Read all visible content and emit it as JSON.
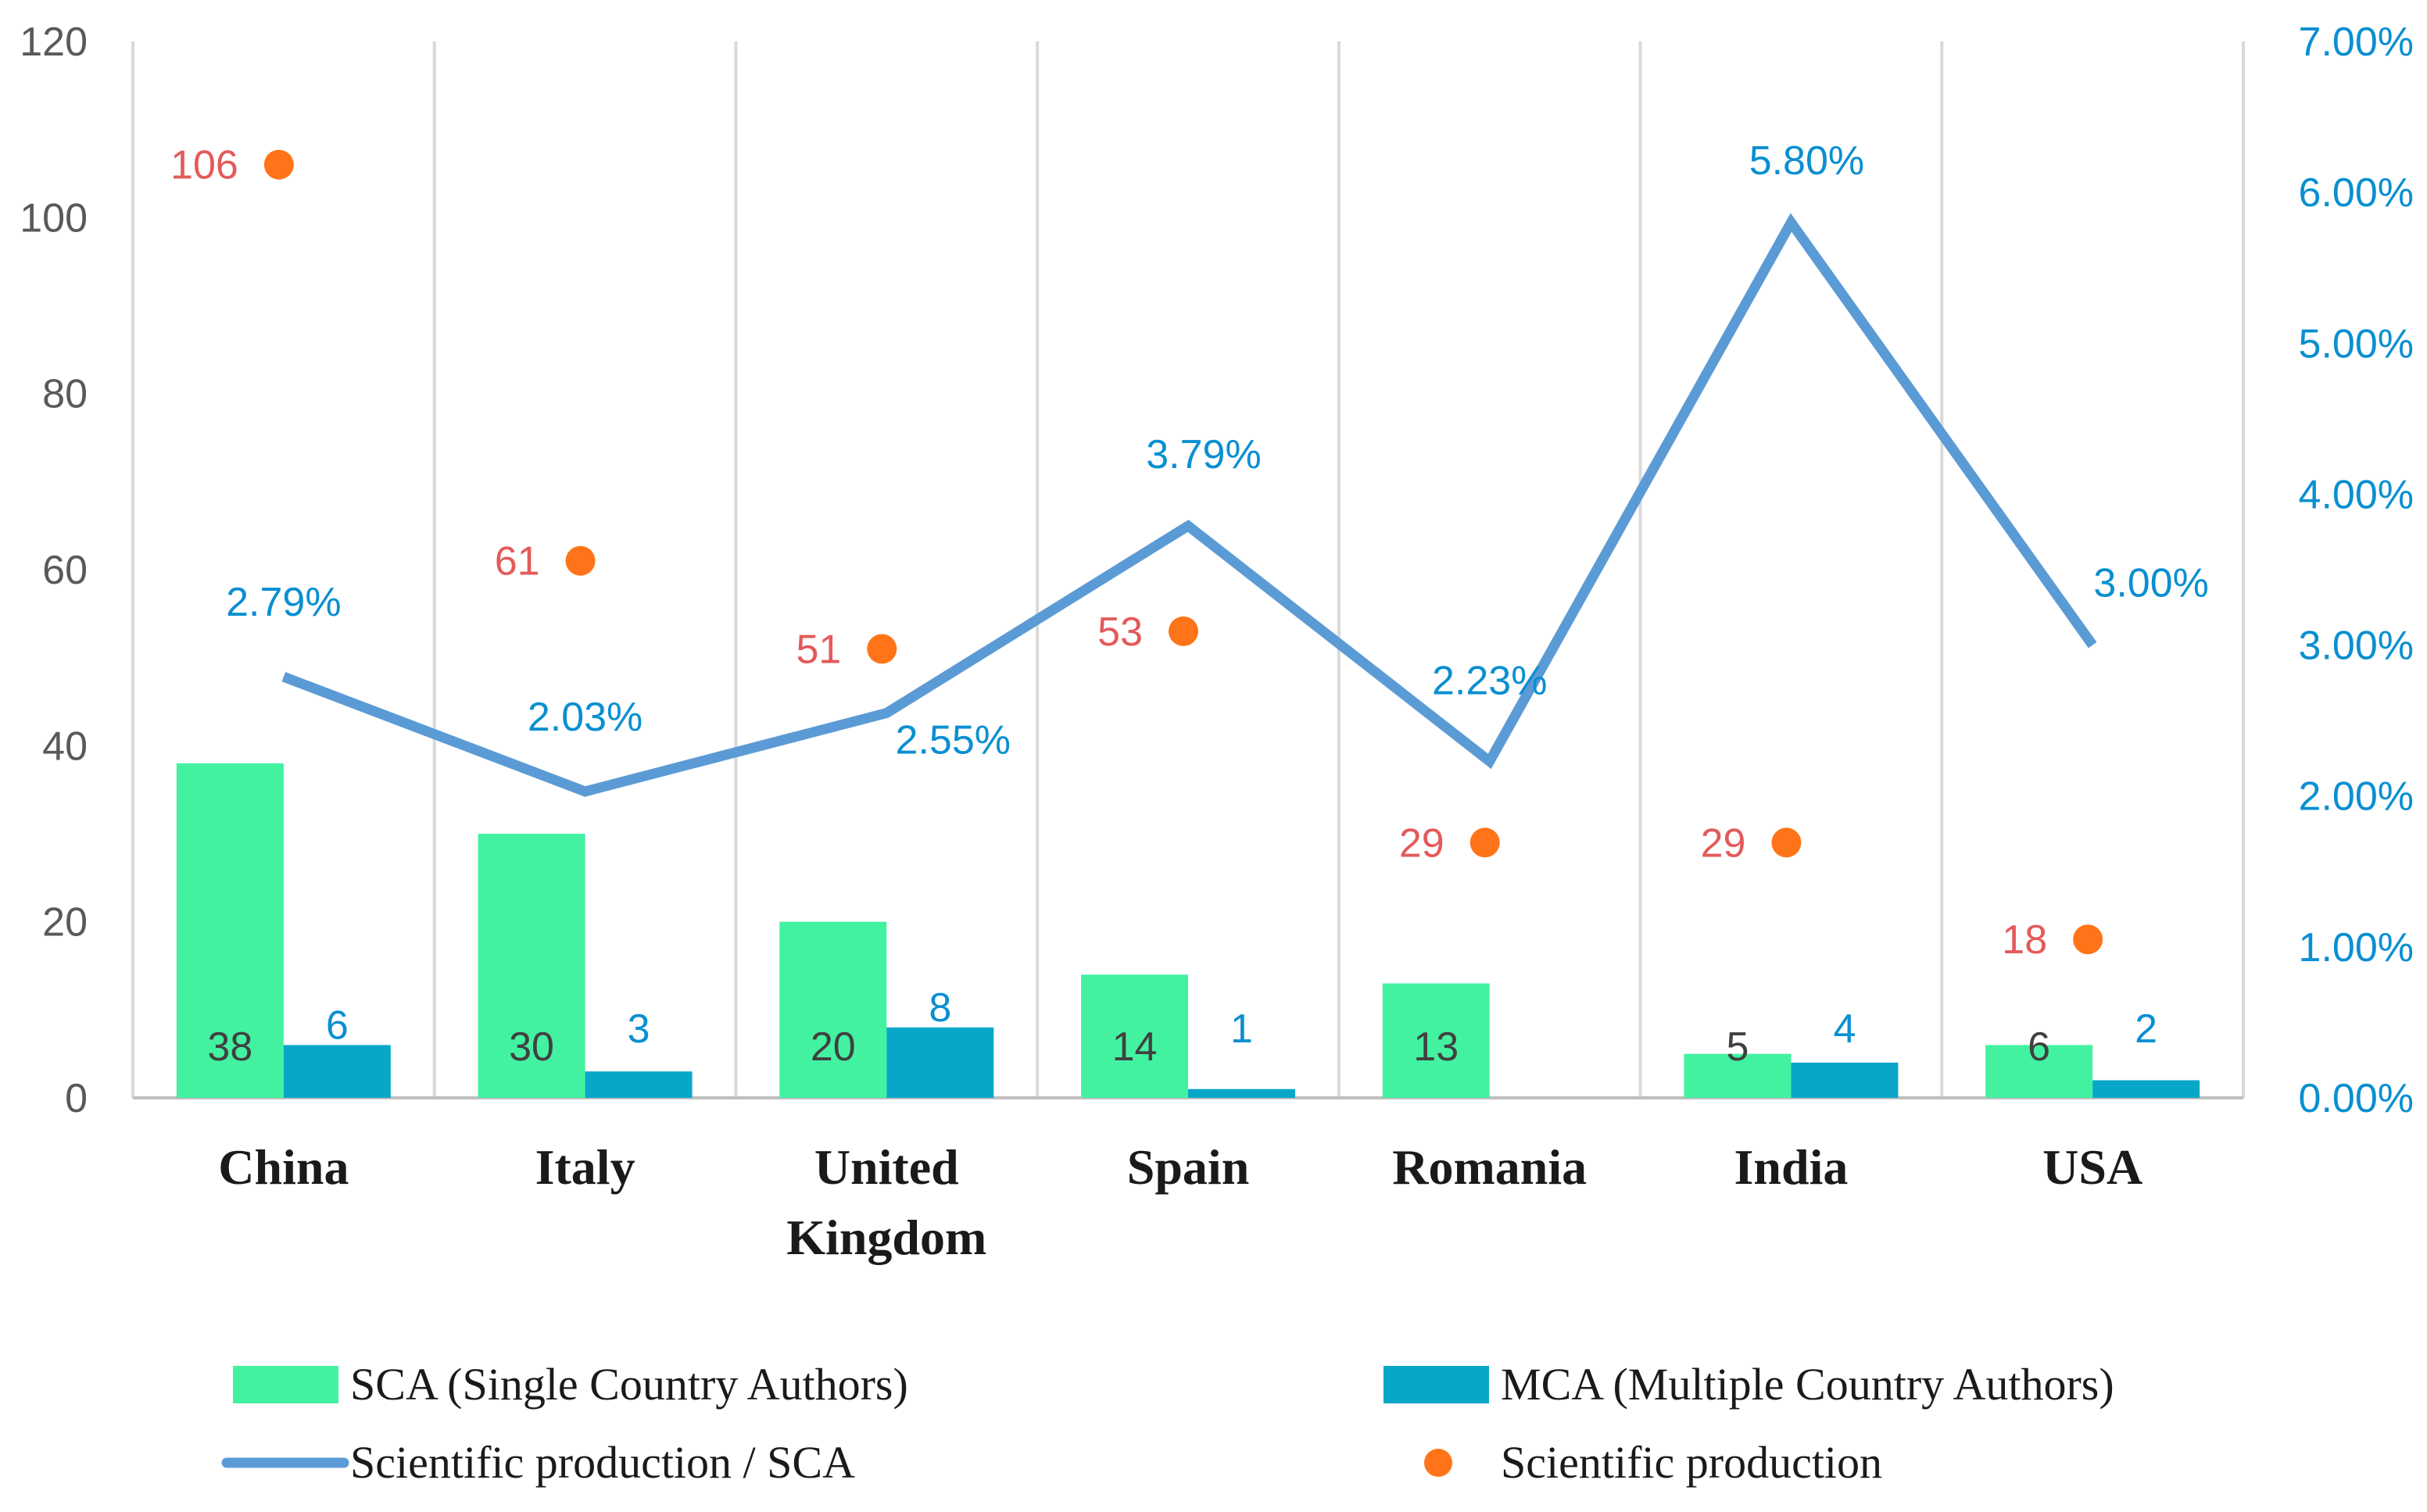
{
  "chart_data": {
    "type": "bar",
    "categories": [
      "China",
      "Italy",
      "United Kingdom",
      "Spain",
      "Romania",
      "India",
      "USA"
    ],
    "category_lines": [
      [
        "China"
      ],
      [
        "Italy"
      ],
      [
        "United",
        "Kingdom"
      ],
      [
        "Spain"
      ],
      [
        "Romania"
      ],
      [
        "India"
      ],
      [
        "USA"
      ]
    ],
    "series": [
      {
        "name": "SCA (Single Country Authors)",
        "type": "bar",
        "axis": "left",
        "color": "#43f2a1",
        "label_color": "#404040",
        "values": [
          38,
          30,
          20,
          14,
          13,
          5,
          6
        ],
        "labels": [
          "38",
          "30",
          "20",
          "14",
          "13",
          "5",
          "6"
        ]
      },
      {
        "name": "MCA (Multiple Country Authors)",
        "type": "bar",
        "axis": "left",
        "color": "#08a7c8",
        "label_color": "#0a8fd1",
        "values": [
          6,
          3,
          8,
          1,
          0,
          4,
          2
        ],
        "labels": [
          "6",
          "3",
          "8",
          "1",
          "",
          "4",
          "2"
        ]
      },
      {
        "name": "Scientific production / SCA",
        "type": "line",
        "axis": "right",
        "color": "#5b9bd5",
        "label_color": "#0a8fd1",
        "values": [
          2.79,
          2.03,
          2.55,
          3.79,
          2.23,
          5.8,
          3.0
        ],
        "labels": [
          "2.79%",
          "2.03%",
          "2.55%",
          "3.79%",
          "2.23%",
          "5.80%",
          "3.00%"
        ]
      },
      {
        "name": "Scientific production",
        "type": "scatter",
        "axis": "left",
        "color": "#ff7418",
        "label_color": "#e45a5a",
        "values": [
          106,
          61,
          51,
          53,
          29,
          29,
          18
        ],
        "labels": [
          "106",
          "61",
          "51",
          "53",
          "29",
          "29",
          "18"
        ]
      }
    ],
    "y_left": {
      "min": 0,
      "max": 120,
      "ticks": [
        "0",
        "20",
        "40",
        "60",
        "80",
        "100",
        "120"
      ]
    },
    "y_right": {
      "min": 0,
      "max": 7,
      "ticks": [
        "0.00%",
        "1.00%",
        "2.00%",
        "3.00%",
        "4.00%",
        "5.00%",
        "6.00%",
        "7.00%"
      ]
    },
    "xlabel": "",
    "ylabel": "",
    "title": "",
    "grid": "vertical separators",
    "legend_position": "bottom"
  }
}
